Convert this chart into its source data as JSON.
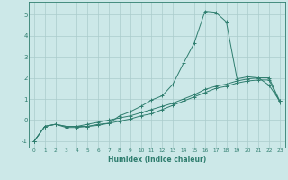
{
  "xlabel": "Humidex (Indice chaleur)",
  "background_color": "#cce8e8",
  "line_color": "#2e7d6e",
  "grid_color": "#aacccc",
  "xlim": [
    -0.5,
    23.5
  ],
  "ylim": [
    -1.3,
    5.6
  ],
  "xticks": [
    0,
    1,
    2,
    3,
    4,
    5,
    6,
    7,
    8,
    9,
    10,
    11,
    12,
    13,
    14,
    15,
    16,
    17,
    18,
    19,
    20,
    21,
    22,
    23
  ],
  "yticks": [
    -1,
    0,
    1,
    2,
    3,
    4,
    5
  ],
  "line1_x": [
    0,
    1,
    2,
    3,
    4,
    5,
    6,
    7,
    8,
    9,
    10,
    11,
    12,
    13,
    14,
    15,
    16,
    17,
    18,
    19,
    20,
    21,
    22,
    23
  ],
  "line1_y": [
    -1.0,
    -0.3,
    -0.2,
    -0.3,
    -0.3,
    -0.3,
    -0.2,
    -0.15,
    -0.05,
    0.05,
    0.2,
    0.3,
    0.5,
    0.7,
    0.9,
    1.1,
    1.3,
    1.5,
    1.6,
    1.75,
    1.85,
    1.9,
    1.9,
    0.85
  ],
  "line2_x": [
    0,
    1,
    2,
    3,
    4,
    5,
    6,
    7,
    8,
    9,
    10,
    11,
    12,
    13,
    14,
    15,
    16,
    17,
    18,
    19,
    20,
    21,
    22,
    23
  ],
  "line2_y": [
    -1.0,
    -0.3,
    -0.2,
    -0.35,
    -0.35,
    -0.3,
    -0.25,
    -0.15,
    0.2,
    0.4,
    0.65,
    0.95,
    1.15,
    1.7,
    2.7,
    3.65,
    5.15,
    5.1,
    4.65,
    1.95,
    2.05,
    2.0,
    1.65,
    0.9
  ],
  "line3_x": [
    0,
    1,
    2,
    3,
    4,
    5,
    6,
    7,
    8,
    9,
    10,
    11,
    12,
    13,
    14,
    15,
    16,
    17,
    18,
    19,
    20,
    21,
    22,
    23
  ],
  "line3_y": [
    -1.0,
    -0.3,
    -0.2,
    -0.3,
    -0.3,
    -0.2,
    -0.1,
    0.0,
    0.1,
    0.2,
    0.35,
    0.5,
    0.65,
    0.8,
    1.0,
    1.2,
    1.45,
    1.6,
    1.7,
    1.85,
    1.95,
    2.0,
    2.0,
    0.9
  ]
}
